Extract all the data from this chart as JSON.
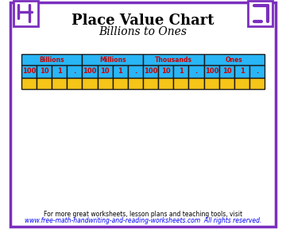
{
  "title": "Place Value Chart",
  "subtitle": "Billions to Ones",
  "title_fontsize": 13,
  "subtitle_fontsize": 10,
  "bg_color": "#ffffff",
  "border_color": "#7b2fbe",
  "border_lw": 2.5,
  "groups": [
    "Billions",
    "Millions",
    "Thousands",
    "Ones"
  ],
  "col_labels": [
    "100",
    "10",
    "1",
    "."
  ],
  "header_bg": "#29b6f6",
  "header_text_color": "#cc0000",
  "cell_bg": "#f5c518",
  "cell_border": "#1a1a1a",
  "group_text_color": "#cc0000",
  "footer_text": "For more great worksheets, lesson plans and teaching tools, visit",
  "footer_url": "www.free-math-handwriting-and-reading-worksheets.com",
  "footer_suffix": "  All rights reserved.",
  "footer_fontsize": 5.5,
  "corner_symbol_color": "#7b2fbe",
  "corner_box_color": "#7b2fbe"
}
